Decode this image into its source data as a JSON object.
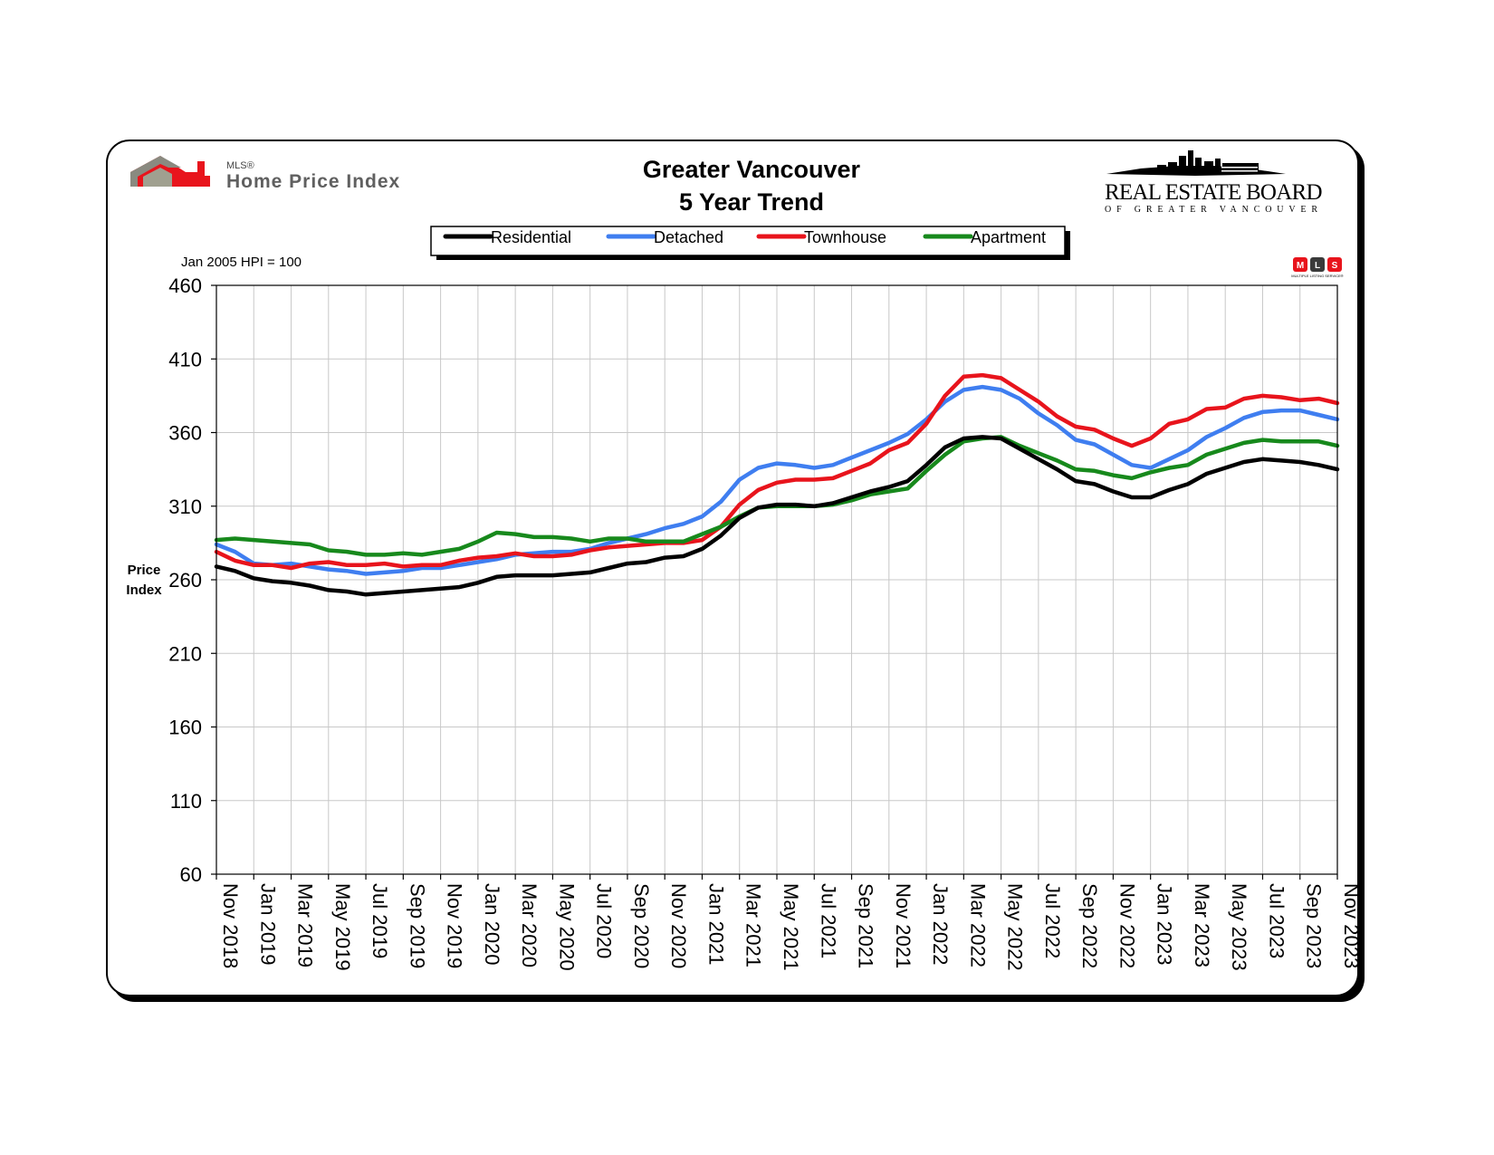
{
  "header": {
    "title_line1": "Greater Vancouver",
    "title_line2": "5 Year Trend",
    "base_note": "Jan 2005 HPI = 100",
    "ylabel_line1": "Price",
    "ylabel_line2": "Index"
  },
  "logos": {
    "hpi_small": "MLS®",
    "hpi_main": "Home Price Index",
    "reb_main": "REAL ESTATE BOARD",
    "reb_sub": "OF GREATER VANCOUVER",
    "mls_letters": [
      "M",
      "L",
      "S"
    ],
    "mls_sub": "MULTIPLE LISTING SERVICE®"
  },
  "colors": {
    "Residential": "#000000",
    "Detached": "#3f7ef0",
    "Townhouse": "#e8141c",
    "Apartment": "#17891c"
  },
  "chart_data": {
    "type": "line",
    "title": "Greater Vancouver 5 Year Trend",
    "ylabel": "Price Index",
    "ylim": [
      60,
      460
    ],
    "yticks": [
      60,
      110,
      160,
      210,
      260,
      310,
      360,
      410,
      460
    ],
    "grid": true,
    "legend_position": "top",
    "x_tick_labels": [
      "Nov 2018",
      "Jan 2019",
      "Mar 2019",
      "May 2019",
      "Jul 2019",
      "Sep 2019",
      "Nov 2019",
      "Jan 2020",
      "Mar 2020",
      "May 2020",
      "Jul 2020",
      "Sep 2020",
      "Nov 2020",
      "Jan 2021",
      "Mar 2021",
      "May 2021",
      "Jul 2021",
      "Sep 2021",
      "Nov 2021",
      "Jan 2022",
      "Mar 2022",
      "May 2022",
      "Jul 2022",
      "Sep 2022",
      "Nov 2022",
      "Jan 2023",
      "Mar 2023",
      "May 2023",
      "Jul 2023",
      "Sep 2023",
      "Nov 2023"
    ],
    "x": [
      "Nov 2018",
      "Dec 2018",
      "Jan 2019",
      "Feb 2019",
      "Mar 2019",
      "Apr 2019",
      "May 2019",
      "Jun 2019",
      "Jul 2019",
      "Aug 2019",
      "Sep 2019",
      "Oct 2019",
      "Nov 2019",
      "Dec 2019",
      "Jan 2020",
      "Feb 2020",
      "Mar 2020",
      "Apr 2020",
      "May 2020",
      "Jun 2020",
      "Jul 2020",
      "Aug 2020",
      "Sep 2020",
      "Oct 2020",
      "Nov 2020",
      "Dec 2020",
      "Jan 2021",
      "Feb 2021",
      "Mar 2021",
      "Apr 2021",
      "May 2021",
      "Jun 2021",
      "Jul 2021",
      "Aug 2021",
      "Sep 2021",
      "Oct 2021",
      "Nov 2021",
      "Dec 2021",
      "Jan 2022",
      "Feb 2022",
      "Mar 2022",
      "Apr 2022",
      "May 2022",
      "Jun 2022",
      "Jul 2022",
      "Aug 2022",
      "Sep 2022",
      "Oct 2022",
      "Nov 2022",
      "Dec 2022",
      "Jan 2023",
      "Feb 2023",
      "Mar 2023",
      "Apr 2023",
      "May 2023",
      "Jun 2023",
      "Jul 2023",
      "Aug 2023",
      "Sep 2023",
      "Oct 2023",
      "Nov 2023"
    ],
    "series": [
      {
        "name": "Residential",
        "values": [
          269,
          266,
          261,
          259,
          258,
          256,
          253,
          252,
          250,
          251,
          252,
          253,
          254,
          255,
          258,
          262,
          263,
          263,
          263,
          264,
          265,
          268,
          271,
          272,
          275,
          276,
          281,
          290,
          302,
          309,
          311,
          311,
          310,
          312,
          316,
          320,
          323,
          327,
          338,
          350,
          356,
          357,
          356,
          349,
          342,
          335,
          327,
          325,
          320,
          316,
          316,
          321,
          325,
          332,
          336,
          340,
          342,
          341,
          340,
          338,
          335
        ]
      },
      {
        "name": "Detached",
        "values": [
          284,
          279,
          271,
          270,
          271,
          269,
          267,
          266,
          264,
          265,
          266,
          268,
          268,
          270,
          272,
          274,
          277,
          278,
          279,
          279,
          281,
          285,
          288,
          291,
          295,
          298,
          303,
          313,
          328,
          336,
          339,
          338,
          336,
          338,
          343,
          348,
          353,
          359,
          369,
          381,
          389,
          391,
          389,
          383,
          373,
          365,
          355,
          352,
          345,
          338,
          336,
          342,
          348,
          357,
          363,
          370,
          374,
          375,
          375,
          372,
          369
        ]
      },
      {
        "name": "Townhouse",
        "values": [
          279,
          273,
          270,
          270,
          268,
          271,
          272,
          270,
          270,
          271,
          269,
          270,
          270,
          273,
          275,
          276,
          278,
          276,
          276,
          277,
          280,
          282,
          283,
          284,
          285,
          285,
          287,
          296,
          311,
          321,
          326,
          328,
          328,
          329,
          334,
          339,
          348,
          353,
          366,
          385,
          398,
          399,
          397,
          389,
          381,
          371,
          364,
          362,
          356,
          351,
          356,
          366,
          369,
          376,
          377,
          383,
          385,
          384,
          382,
          383,
          380
        ]
      },
      {
        "name": "Apartment",
        "values": [
          287,
          288,
          287,
          286,
          285,
          284,
          280,
          279,
          277,
          277,
          278,
          277,
          279,
          281,
          286,
          292,
          291,
          289,
          289,
          288,
          286,
          288,
          288,
          286,
          286,
          286,
          291,
          296,
          303,
          309,
          310,
          310,
          310,
          311,
          314,
          318,
          320,
          322,
          334,
          345,
          354,
          356,
          357,
          351,
          346,
          341,
          335,
          334,
          331,
          329,
          333,
          336,
          338,
          345,
          349,
          353,
          355,
          354,
          354,
          354,
          351
        ]
      }
    ]
  }
}
